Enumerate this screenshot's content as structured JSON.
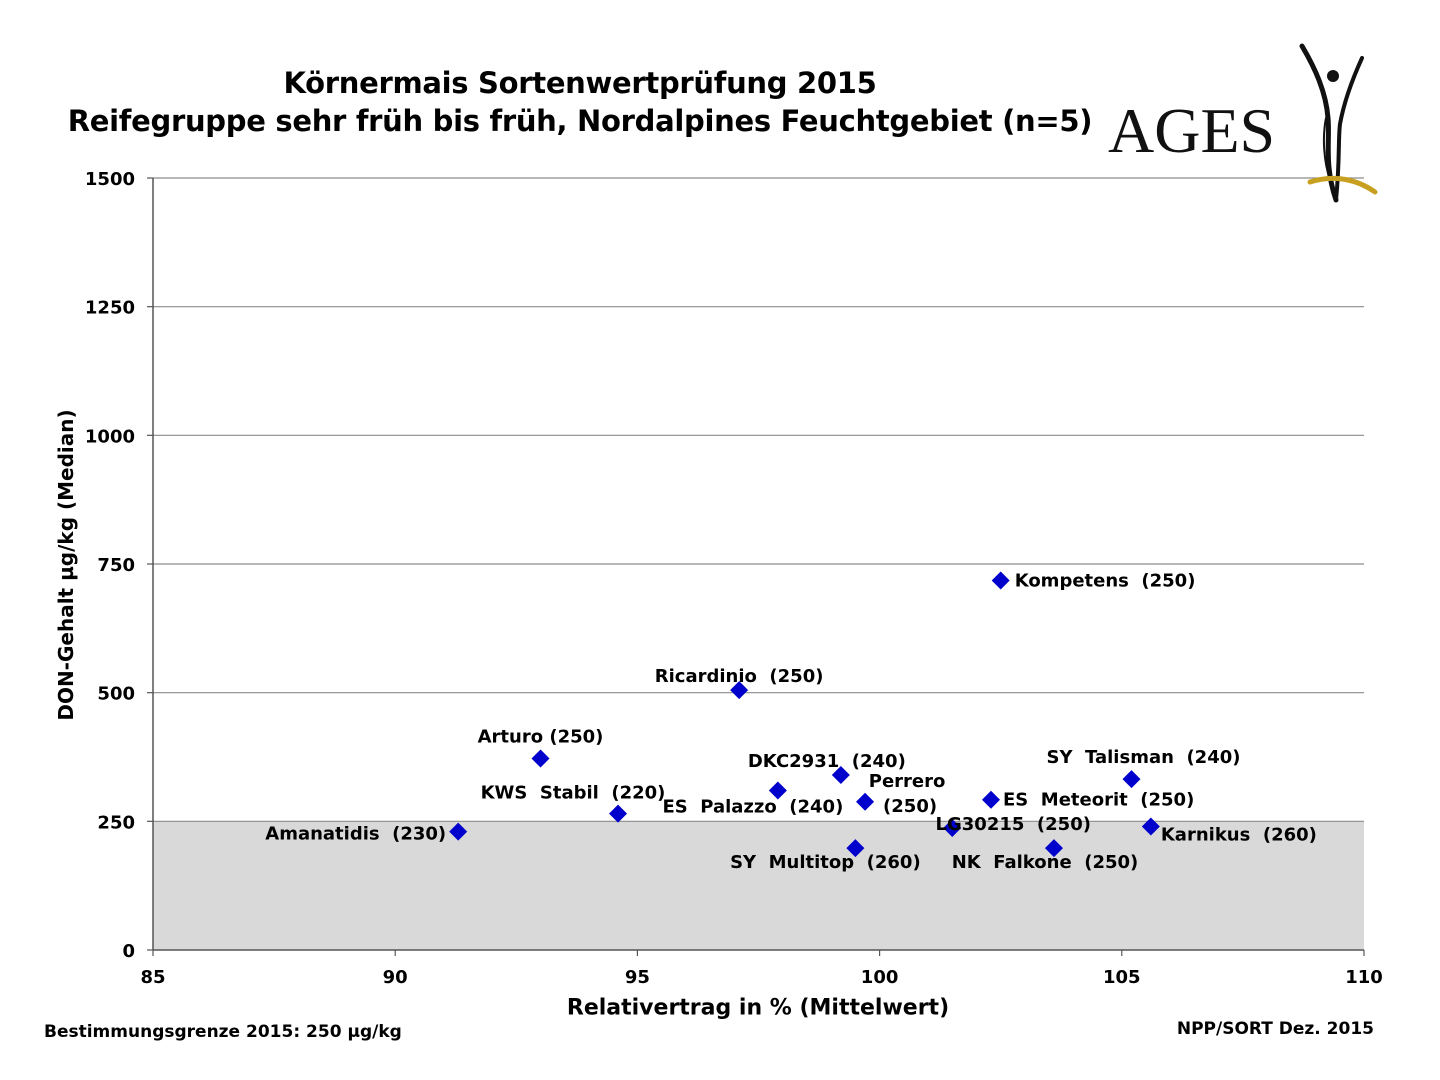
{
  "header": {
    "title_line1": "Körnermais Sortenwertprüfung 2015",
    "title_line2": "Reifegruppe sehr früh bis früh, Nordalpines Feuchtgebiet (n=5)",
    "logo_text": "AGES"
  },
  "footer": {
    "left": "Bestimmungsgrenze 2015: 250 µg/kg",
    "right": "NPP/SORT Dez. 2015"
  },
  "chart_data": {
    "type": "scatter",
    "xlabel": "Relativertrag in % (Mittelwert)",
    "ylabel": "DON-Gehalt µg/kg (Median)",
    "xlim": [
      85,
      110
    ],
    "ylim": [
      0,
      1500
    ],
    "x_ticks": [
      85,
      90,
      95,
      100,
      105,
      110
    ],
    "y_ticks": [
      0,
      250,
      500,
      750,
      1000,
      1250,
      1500
    ],
    "grid": "horizontal",
    "shaded_band": {
      "y_from": 0,
      "y_to": 250,
      "color": "#d9d9d9"
    },
    "marker_color": "#0000cc",
    "points": [
      {
        "label": "Amanatidis  (230)",
        "x": 91.3,
        "y": 230
      },
      {
        "label": "Arturo (250)",
        "x": 93.0,
        "y": 372
      },
      {
        "label": "KWS  Stabil  (220)",
        "x": 94.6,
        "y": 265
      },
      {
        "label": "Ricardinio  (250)",
        "x": 97.1,
        "y": 505
      },
      {
        "label": "ES  Palazzo  (240)",
        "x": 97.9,
        "y": 310
      },
      {
        "label": "DKC2931  (240)",
        "x": 99.2,
        "y": 340
      },
      {
        "label": "SY  Multitop  (260)",
        "x": 99.5,
        "y": 198
      },
      {
        "label": "Perrero",
        "label2": "(250)",
        "x": 99.7,
        "y": 288
      },
      {
        "label": "LG30215  (250)",
        "x": 101.5,
        "y": 237
      },
      {
        "label": "ES  Meteorit  (250)",
        "x": 102.3,
        "y": 292
      },
      {
        "label": "Kompetens  (250)",
        "x": 102.5,
        "y": 718
      },
      {
        "label": "NK  Falkone  (250)",
        "x": 103.6,
        "y": 198
      },
      {
        "label": "SY  Talisman  (240)",
        "x": 105.2,
        "y": 332
      },
      {
        "label": "Karnikus  (260)",
        "x": 105.6,
        "y": 240
      }
    ]
  }
}
